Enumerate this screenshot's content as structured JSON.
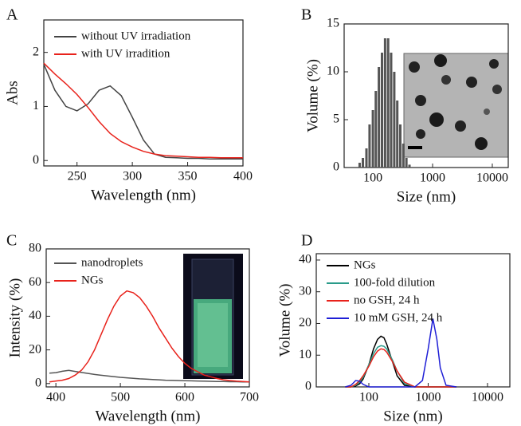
{
  "chart_data": [
    {
      "type": "line",
      "label": "A",
      "xlabel": "Wavelength (nm)",
      "ylabel": "Abs",
      "legend": "upper right",
      "xlim": [
        220,
        400
      ],
      "xticks": [
        250,
        300,
        350,
        400
      ],
      "ylim": [
        -0.1,
        2.6
      ],
      "yticks": [
        0,
        1,
        2
      ],
      "x": [
        220,
        230,
        240,
        250,
        260,
        270,
        280,
        290,
        300,
        310,
        320,
        330,
        340,
        350,
        360,
        370,
        380,
        390,
        400
      ],
      "series": [
        {
          "name": "without UV irradiation",
          "color": "#444444",
          "values": [
            1.78,
            1.3,
            1.0,
            0.92,
            1.05,
            1.3,
            1.38,
            1.2,
            0.8,
            0.38,
            0.12,
            0.06,
            0.05,
            0.04,
            0.04,
            0.03,
            0.03,
            0.03,
            0.03
          ]
        },
        {
          "name": "with UV irradition",
          "color": "#e8221b",
          "values": [
            1.8,
            1.6,
            1.42,
            1.22,
            0.98,
            0.72,
            0.5,
            0.35,
            0.25,
            0.17,
            0.12,
            0.09,
            0.08,
            0.07,
            0.06,
            0.06,
            0.05,
            0.05,
            0.05
          ]
        }
      ]
    },
    {
      "type": "bar",
      "label": "B",
      "xlabel": "Size (nm)",
      "ylabel": "Volume (%)",
      "xlog": true,
      "xlim": [
        33,
        18500
      ],
      "xticks": [
        100,
        1000,
        10000
      ],
      "ylim": [
        0,
        15
      ],
      "yticks": [
        0,
        5,
        10,
        15
      ],
      "color": "#555555",
      "x": [
        60,
        68,
        78,
        88,
        100,
        112,
        126,
        142,
        160,
        180,
        202,
        228,
        256,
        288,
        324,
        364,
        410
      ],
      "values": [
        0.5,
        1,
        2,
        4.5,
        6,
        8,
        10.5,
        12,
        13.5,
        13.5,
        12,
        10,
        7,
        4.5,
        2.5,
        1,
        0.3
      ]
    },
    {
      "type": "line",
      "label": "C",
      "xlabel": "Wavelength (nm)",
      "ylabel": "Intensity (%)",
      "legend": "upper left",
      "xlim": [
        385,
        700
      ],
      "xticks": [
        400,
        500,
        600,
        700
      ],
      "ylim": [
        -2,
        80
      ],
      "yticks": [
        0,
        20,
        40,
        60,
        80
      ],
      "x": [
        390,
        400,
        410,
        420,
        430,
        440,
        450,
        460,
        470,
        480,
        490,
        500,
        510,
        520,
        530,
        540,
        550,
        560,
        570,
        580,
        590,
        600,
        610,
        620,
        630,
        640,
        650,
        660,
        670,
        680,
        690,
        700
      ],
      "series": [
        {
          "name": "nanodroplets",
          "color": "#555555",
          "values": [
            6.2,
            6.5,
            7.3,
            7.8,
            7.2,
            6.6,
            6,
            5.4,
            4.9,
            4.5,
            4.1,
            3.7,
            3.4,
            3.1,
            2.8,
            2.6,
            2.4,
            2.2,
            2,
            1.9,
            1.8,
            1.7,
            1.6,
            1.5,
            1.4,
            1.3,
            1.2,
            1.2,
            1.1,
            1.1,
            1,
            1
          ]
        },
        {
          "name": "NGs",
          "color": "#e8221b",
          "values": [
            1,
            1.5,
            2,
            3,
            5,
            8,
            13,
            20,
            29,
            38,
            46,
            52,
            55,
            54,
            51,
            46,
            40,
            33,
            27,
            21,
            16,
            12,
            9,
            7,
            5,
            4,
            3,
            2.2,
            1.8,
            1.4,
            1.2,
            1
          ]
        }
      ]
    },
    {
      "type": "line",
      "label": "D",
      "xlabel": "Size (nm)",
      "ylabel": "Volume (%)",
      "legend": "upper left",
      "xlog": true,
      "xlim": [
        13,
        23800
      ],
      "xticks": [
        100,
        1000,
        10000
      ],
      "ylim": [
        0,
        42
      ],
      "yticks": [
        0,
        10,
        20,
        30,
        40
      ],
      "x": [
        40,
        50,
        60,
        70,
        80,
        100,
        120,
        140,
        160,
        180,
        200,
        250,
        300,
        400,
        600,
        800,
        1000,
        1200,
        1400,
        1600,
        2000,
        3000
      ],
      "series": [
        {
          "name": "NGs",
          "color": "#000000",
          "values": [
            0,
            0,
            0.3,
            1,
            2.5,
            7,
            12,
            15,
            16,
            15.5,
            13.5,
            8,
            3.5,
            0.5,
            0,
            0,
            0,
            0,
            0,
            0,
            0,
            0
          ]
        },
        {
          "name": "100-fold dilution",
          "color": "#2a9b8a",
          "values": [
            0,
            0,
            0.5,
            1.5,
            3,
            7,
            10.5,
            12.5,
            13,
            12.8,
            12,
            8.5,
            5,
            1,
            0,
            0,
            0,
            0,
            0,
            0,
            0,
            0
          ]
        },
        {
          "name": "no GSH, 24 h",
          "color": "#e8221b",
          "values": [
            0,
            0,
            0.8,
            2,
            3.5,
            6.5,
            9.5,
            11.3,
            12,
            11.8,
            11,
            8,
            5,
            1.5,
            0,
            0,
            0,
            0,
            0,
            0,
            0,
            0
          ]
        },
        {
          "name": "10 mM GSH, 24 h",
          "color": "#1f1fd6",
          "values": [
            0,
            0.5,
            2,
            1.8,
            0.8,
            0,
            0,
            0,
            0,
            0,
            0,
            0,
            0,
            0,
            0,
            2,
            12,
            21.5,
            15,
            6,
            0.5,
            0
          ]
        }
      ]
    }
  ]
}
